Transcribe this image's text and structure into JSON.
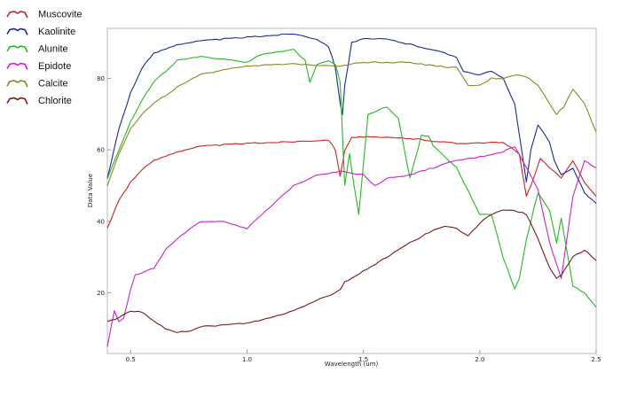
{
  "chart_data": {
    "type": "line",
    "title": "",
    "xlabel": "Wavelength (um)",
    "ylabel": "Data Value",
    "xlim": [
      0.4,
      2.5
    ],
    "ylim": [
      3,
      94
    ],
    "x_ticks": [
      "0.5",
      "1.0",
      "1.5",
      "2.0",
      "2.5"
    ],
    "y_ticks": [
      "20",
      "40",
      "60",
      "80"
    ],
    "grid": false,
    "legend_position": "outside-left",
    "series": [
      {
        "name": "Muscovite",
        "color": "#cc2222",
        "x": [
          0.4,
          0.45,
          0.5,
          0.55,
          0.6,
          0.7,
          0.8,
          1.0,
          1.2,
          1.35,
          1.38,
          1.4,
          1.42,
          1.45,
          1.5,
          1.7,
          1.9,
          2.0,
          2.1,
          2.17,
          2.2,
          2.22,
          2.26,
          2.3,
          2.35,
          2.4,
          2.45,
          2.5
        ],
        "y": [
          38,
          46,
          51,
          54.5,
          57,
          59.5,
          61,
          61.8,
          62.3,
          62.8,
          60,
          52.5,
          60,
          63.5,
          63.6,
          63.2,
          61.8,
          62,
          62,
          59,
          47,
          50,
          57.5,
          55,
          52,
          57,
          51,
          47
        ]
      },
      {
        "name": "Kaolinite",
        "color": "#1a2a99",
        "x": [
          0.4,
          0.45,
          0.5,
          0.55,
          0.6,
          0.7,
          0.8,
          0.9,
          1.0,
          1.1,
          1.2,
          1.3,
          1.35,
          1.38,
          1.4,
          1.41,
          1.42,
          1.45,
          1.5,
          1.6,
          1.7,
          1.8,
          1.9,
          1.93,
          2.0,
          2.05,
          2.1,
          2.15,
          2.2,
          2.22,
          2.25,
          2.3,
          2.32,
          2.35,
          2.4,
          2.45,
          2.5
        ],
        "y": [
          52,
          66,
          76,
          83,
          87,
          89.5,
          90.5,
          91,
          91.5,
          92,
          92.5,
          91,
          89,
          83,
          73,
          70,
          78,
          90,
          91,
          91,
          89.5,
          88,
          86,
          82,
          81,
          82,
          80,
          73,
          51,
          60,
          67,
          62,
          57,
          53,
          55,
          48,
          45
        ]
      },
      {
        "name": "Alunite",
        "color": "#22bb22",
        "x": [
          0.4,
          0.45,
          0.5,
          0.55,
          0.6,
          0.7,
          0.8,
          0.9,
          1.0,
          1.05,
          1.1,
          1.2,
          1.25,
          1.27,
          1.3,
          1.35,
          1.38,
          1.4,
          1.42,
          1.44,
          1.46,
          1.48,
          1.52,
          1.6,
          1.65,
          1.7,
          1.75,
          1.78,
          1.8,
          1.9,
          2.0,
          2.05,
          2.1,
          2.15,
          2.17,
          2.2,
          2.25,
          2.3,
          2.33,
          2.35,
          2.4,
          2.45,
          2.5
        ],
        "y": [
          52,
          60,
          68,
          74,
          79,
          85,
          86,
          85.5,
          84.5,
          86.5,
          87,
          88,
          85,
          79,
          84,
          85,
          84,
          79,
          50,
          59,
          50,
          42,
          70,
          72,
          69,
          52,
          64,
          64,
          61,
          55,
          42,
          42,
          30,
          21,
          24,
          35,
          48,
          43,
          34,
          41,
          22,
          20,
          16
        ]
      },
      {
        "name": "Epidote",
        "color": "#cc22cc",
        "x": [
          0.4,
          0.43,
          0.45,
          0.47,
          0.5,
          0.52,
          0.55,
          0.6,
          0.65,
          0.7,
          0.8,
          0.9,
          1.0,
          1.1,
          1.2,
          1.3,
          1.4,
          1.5,
          1.55,
          1.6,
          1.7,
          1.8,
          1.9,
          2.0,
          2.1,
          2.15,
          2.2,
          2.25,
          2.3,
          2.35,
          2.4,
          2.45,
          2.5
        ],
        "y": [
          5,
          15,
          12,
          13,
          21,
          25,
          25.5,
          27,
          32,
          35,
          40,
          40,
          38,
          44,
          50,
          53,
          54,
          53,
          50,
          52,
          53,
          55,
          57,
          58,
          59.5,
          61,
          55,
          49,
          34,
          24,
          47,
          57,
          55
        ]
      },
      {
        "name": "Calcite",
        "color": "#888822",
        "x": [
          0.4,
          0.45,
          0.5,
          0.55,
          0.6,
          0.7,
          0.8,
          0.9,
          1.0,
          1.2,
          1.4,
          1.5,
          1.6,
          1.7,
          1.8,
          1.9,
          1.95,
          2.0,
          2.05,
          2.1,
          2.15,
          2.2,
          2.25,
          2.3,
          2.33,
          2.36,
          2.4,
          2.45,
          2.5
        ],
        "y": [
          50,
          59,
          66,
          70,
          73,
          77.5,
          81,
          82.5,
          83.5,
          84,
          83.5,
          84.5,
          84.5,
          84.5,
          83.5,
          83,
          78,
          78,
          80,
          80,
          81,
          80.5,
          78,
          73,
          70,
          72,
          77,
          73,
          65
        ]
      },
      {
        "name": "Chlorite",
        "color": "#771a1a",
        "x": [
          0.4,
          0.45,
          0.5,
          0.55,
          0.6,
          0.65,
          0.7,
          0.75,
          0.8,
          0.9,
          1.0,
          1.1,
          1.2,
          1.3,
          1.38,
          1.4,
          1.42,
          1.5,
          1.6,
          1.7,
          1.8,
          1.85,
          1.9,
          1.95,
          2.0,
          2.05,
          2.1,
          2.15,
          2.2,
          2.25,
          2.3,
          2.33,
          2.35,
          2.4,
          2.45,
          2.5
        ],
        "y": [
          12,
          13,
          15,
          14.5,
          12,
          10,
          9,
          9,
          10.5,
          11,
          11.5,
          13,
          15,
          18,
          20,
          21,
          23,
          26,
          30,
          34,
          37.5,
          38.5,
          38,
          36,
          39.5,
          42,
          43,
          43,
          42,
          35,
          27,
          24,
          25,
          30,
          32,
          29
        ]
      }
    ]
  }
}
